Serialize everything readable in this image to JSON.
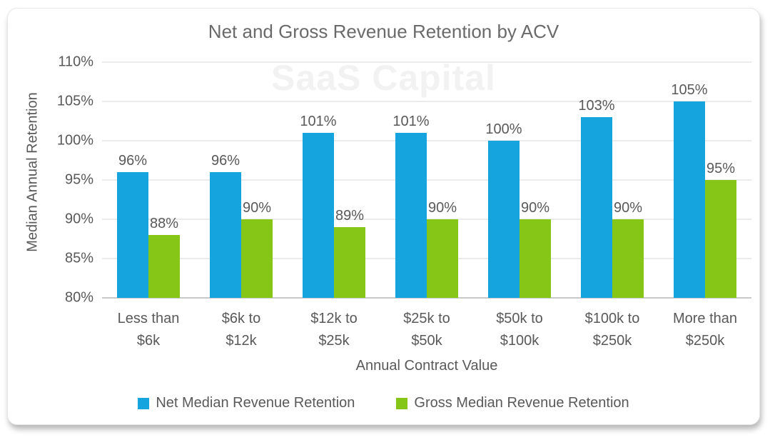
{
  "watermark": "SaaS Capital",
  "text_color": "#595959",
  "chart_data": {
    "type": "bar",
    "title": "Net and Gross Revenue Retention by ACV",
    "xlabel": "Annual Contract Value",
    "ylabel": "Median Annual Retention",
    "ylim": [
      80,
      110
    ],
    "ytick_step": 5,
    "ytick_labels": [
      "110%",
      "105%",
      "100%",
      "95%",
      "90%",
      "85%",
      "80%"
    ],
    "grid": true,
    "legend_position": "bottom",
    "categories": [
      "Less than\n$6k",
      "$6k to\n$12k",
      "$12k to\n$25k",
      "$25k to\n$50k",
      "$50k to\n$100k",
      "$100k to\n$250k",
      "More than\n$250k"
    ],
    "series": [
      {
        "name": "Net Median Revenue Retention",
        "color": "#15a4dd",
        "values": [
          96,
          96,
          101,
          101,
          100,
          103,
          105
        ],
        "labels": [
          "96%",
          "96%",
          "101%",
          "101%",
          "100%",
          "103%",
          "105%"
        ]
      },
      {
        "name": "Gross Median Revenue Retention",
        "color": "#85c616",
        "values": [
          88,
          90,
          89,
          90,
          90,
          90,
          95
        ],
        "labels": [
          "88%",
          "90%",
          "89%",
          "90%",
          "90%",
          "90%",
          "95%"
        ]
      }
    ]
  }
}
